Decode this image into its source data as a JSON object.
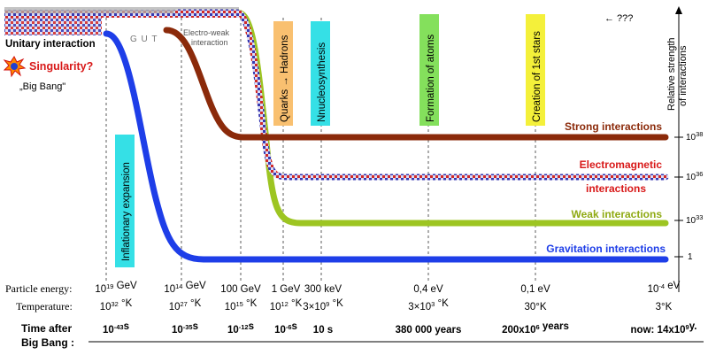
{
  "diagram": {
    "unitary_label": "Unitary interaction",
    "singularity_label": "Singularity?",
    "big_bang_label": "„Big Bang\"",
    "gut_label": "G U T",
    "electroweak_label": [
      "Electro-weak",
      "interaction"
    ],
    "arrow_label": "← ???",
    "y_axis_title": [
      "Relative strength",
      "of interactions"
    ],
    "epochs": [
      {
        "text": "Inflationary expansion",
        "color": "#35e0e6"
      },
      {
        "text": "Quarks → Hadrons",
        "color": "#f9c070"
      },
      {
        "text": "Nnucleosynthesis",
        "color": "#35e0e6"
      },
      {
        "text": "Formation of atoms",
        "color": "#84e05c"
      },
      {
        "text": "Creation of 1st stars",
        "color": "#f4f03a"
      }
    ],
    "interactions": [
      {
        "label": "Strong interactions",
        "color": "#8b2a0a",
        "strength": "10^38"
      },
      {
        "label": [
          "Electromagnetic",
          "interactions"
        ],
        "color": "#d81818",
        "strength": "10^36"
      },
      {
        "label": "Weak interactions",
        "color": "#8faa12",
        "strength": "10^33"
      },
      {
        "label": "Gravitation interactions",
        "color": "#1e3ee8",
        "strength": "1"
      }
    ],
    "row_labels": {
      "energy": "Particle energy:",
      "temperature": "Temperature:",
      "time": [
        "Time after",
        "Big Bang :"
      ]
    },
    "energy": [
      "10^19 GeV",
      "10^14 GeV",
      "100 GeV",
      "1 GeV",
      "300 keV",
      "0,4 eV",
      "0,1 eV",
      "10^-4 eV"
    ],
    "temperature": [
      "10^32 °K",
      "10^27 °K",
      "10^15 °K",
      "10^12 °K",
      "3×10^9 °K",
      "3×10^3 °K",
      "30°K",
      "3°K"
    ],
    "time": [
      "10^-43s",
      "10^-35s",
      "10^-12s",
      "10^-6s",
      "10 s",
      "380 000 years",
      "200x10^6 years",
      "now: 14x10^9y."
    ],
    "colors": {
      "strong": "#8b2a0a",
      "electromagnetic": "#d81818",
      "weak": "#9dc522",
      "gravitation": "#1e3ee8",
      "unified": "#a4a4d0"
    }
  }
}
